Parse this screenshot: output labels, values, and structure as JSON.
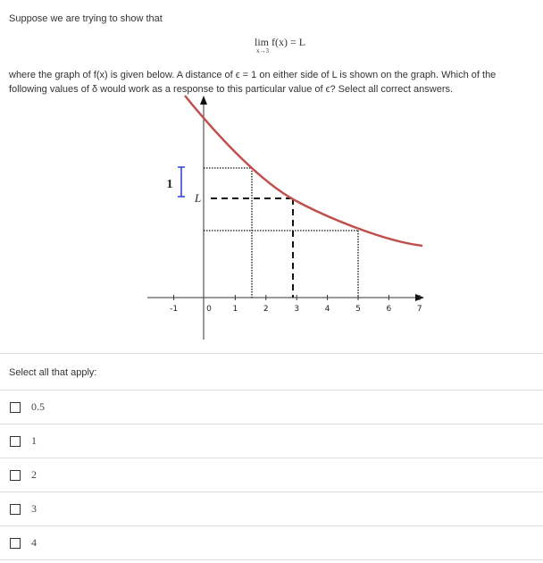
{
  "question": {
    "intro": "Suppose we are trying to show that",
    "limit": {
      "lim": "lim",
      "sub": "x→3",
      "expr": "f(x) = L"
    },
    "text": "where the graph of f(x) is given below. A distance of ϵ = 1 on either side of L is shown on the graph. Which of the following values of δ would work as a response to this particular value of ϵ? Select all correct answers."
  },
  "figure": {
    "x_tick_labels": [
      -1,
      0,
      1,
      2,
      3,
      4,
      5,
      6,
      7
    ],
    "epsilon_label": "1",
    "L_label": "L"
  },
  "instructions": "Select all that apply:",
  "options": [
    "0.5",
    "1",
    "2",
    "3",
    "4"
  ]
}
